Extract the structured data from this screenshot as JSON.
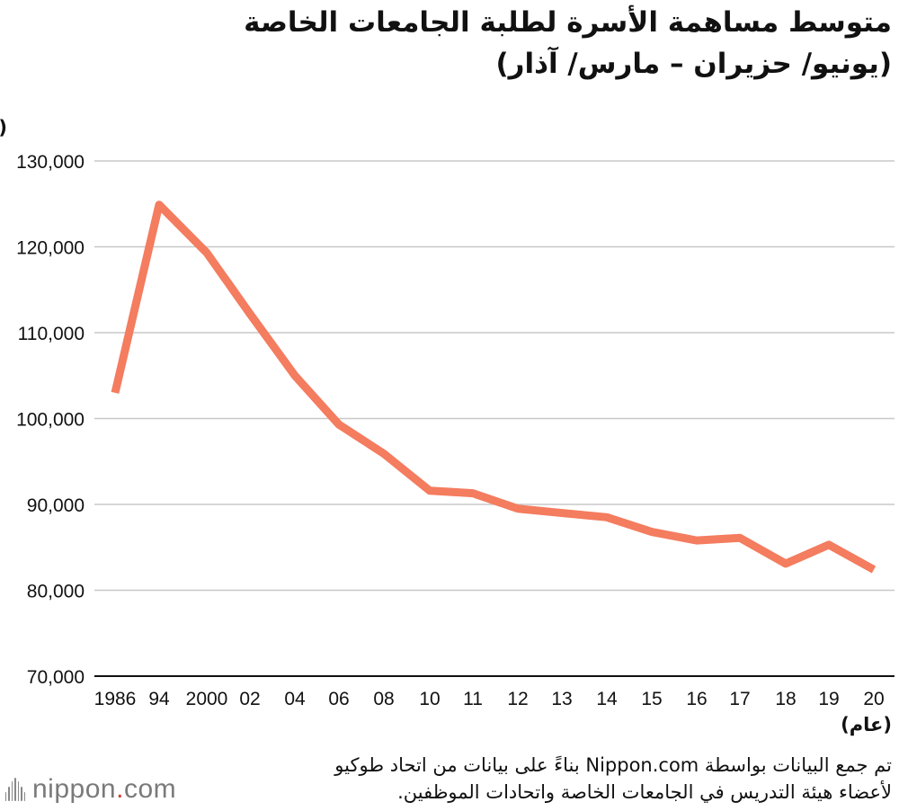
{
  "chart_data": {
    "type": "line",
    "title": "متوسط مساهمة الأسرة لطلبة الجامعات الخاصة",
    "subtitle": "(يونيو/ حزيران – مارس/ آذار)",
    "ylabel": "(ين)",
    "xlabel": "(عام)",
    "ylim": [
      70000,
      130000
    ],
    "yticks": [
      "130,000",
      "120,000",
      "110,000",
      "100,000",
      "90,000",
      "80,000",
      "70,000"
    ],
    "ytick_values": [
      130000,
      120000,
      110000,
      100000,
      90000,
      80000,
      70000
    ],
    "categories": [
      "1986",
      "94",
      "2000",
      "02",
      "04",
      "06",
      "08",
      "10",
      "11",
      "12",
      "13",
      "14",
      "15",
      "16",
      "17",
      "18",
      "19",
      "20"
    ],
    "x_years": [
      1986,
      1994,
      2000,
      2002,
      2004,
      2006,
      2008,
      2010,
      2011,
      2012,
      2013,
      2014,
      2015,
      2016,
      2017,
      2018,
      2019,
      2020
    ],
    "values": [
      103000,
      124900,
      119300,
      112200,
      105000,
      99300,
      95900,
      91600,
      91300,
      89500,
      89000,
      88500,
      86800,
      85800,
      86100,
      83100,
      85300,
      82400
    ],
    "grid": true,
    "line_color": "#f47c5f"
  },
  "footer": {
    "note_line1": "تم جمع البيانات بواسطة Nippon.com بناءً على بيانات من اتحاد طوكيو",
    "note_line2": "لأعضاء هيئة التدريس في الجامعات الخاصة واتحادات الموظفين.",
    "logo_main": "nippon",
    "logo_dot": ".",
    "logo_suffix": "com"
  }
}
